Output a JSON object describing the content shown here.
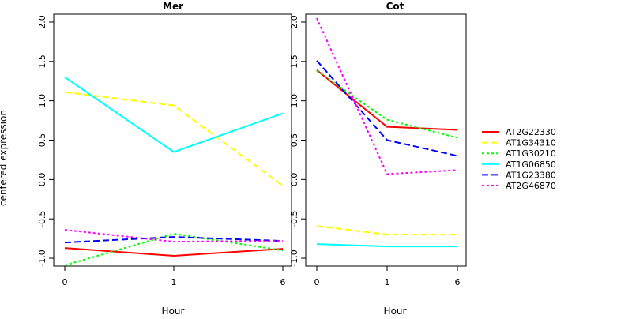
{
  "chart_data": [
    {
      "type": "line",
      "title": "Mer",
      "xlabel": "Hour",
      "ylabel": "centered expression",
      "x_ticks": [
        "0",
        "1",
        "6"
      ],
      "y_ticks": [
        "-1.0",
        "-0.5",
        "0.0",
        "0.5",
        "1.0",
        "1.5",
        "2.0"
      ],
      "ylim": [
        -1.1,
        2.1
      ],
      "series": [
        {
          "name": "AT2G22330",
          "values": [
            -0.87,
            -0.97,
            -0.88
          ]
        },
        {
          "name": "AT1G34310",
          "values": [
            1.11,
            0.94,
            -0.08
          ]
        },
        {
          "name": "AT1G30210",
          "values": [
            -1.09,
            -0.69,
            -0.9
          ]
        },
        {
          "name": "AT1G06850",
          "values": [
            1.3,
            0.35,
            0.84
          ]
        },
        {
          "name": "AT1G23380",
          "values": [
            -0.8,
            -0.73,
            -0.78
          ]
        },
        {
          "name": "AT2G46870",
          "values": [
            -0.64,
            -0.79,
            -0.78
          ]
        }
      ]
    },
    {
      "type": "line",
      "title": "Cot",
      "xlabel": "Hour",
      "ylabel": "",
      "x_ticks": [
        "0",
        "1",
        "6"
      ],
      "y_ticks": [
        "-1.0",
        "-0.5",
        "0.0",
        "0.5",
        "1.0",
        "1.5",
        "2.0"
      ],
      "ylim": [
        -1.1,
        2.1
      ],
      "series": [
        {
          "name": "AT2G22330",
          "values": [
            1.39,
            0.67,
            0.63
          ]
        },
        {
          "name": "AT1G34310",
          "values": [
            -0.59,
            -0.7,
            -0.7
          ]
        },
        {
          "name": "AT1G30210",
          "values": [
            1.38,
            0.76,
            0.53
          ]
        },
        {
          "name": "AT1G06850",
          "values": [
            -0.82,
            -0.85,
            -0.85
          ]
        },
        {
          "name": "AT1G23380",
          "values": [
            1.51,
            0.5,
            0.3
          ]
        },
        {
          "name": "AT2G46870",
          "values": [
            2.05,
            0.07,
            0.12
          ]
        }
      ]
    }
  ],
  "legend": {
    "placement": "right",
    "entries": [
      {
        "label": "AT2G22330",
        "color": "#ff0000",
        "dash": "solid"
      },
      {
        "label": "AT1G34310",
        "color": "#ffff00",
        "dash": "dashed"
      },
      {
        "label": "AT1G30210",
        "color": "#00ff00",
        "dash": "dotted"
      },
      {
        "label": "AT1G06850",
        "color": "#00ffff",
        "dash": "solid"
      },
      {
        "label": "AT1G23380",
        "color": "#0000ff",
        "dash": "dashed"
      },
      {
        "label": "AT2G46870",
        "color": "#ff00ff",
        "dash": "dotted"
      }
    ]
  }
}
